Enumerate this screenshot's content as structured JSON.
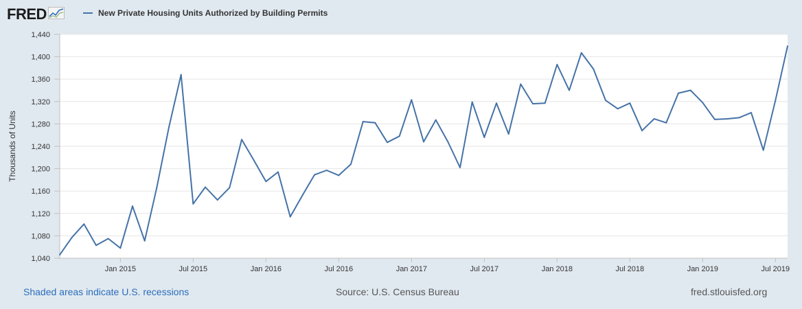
{
  "brand": {
    "logo_text": "FRED",
    "logo_icon": "chart-trend-icon"
  },
  "legend": {
    "label": "New Private Housing Units Authorized by Building Permits",
    "color": "#4572a7"
  },
  "footer": {
    "left": "Shaded areas indicate U.S. recessions",
    "center": "Source: U.S. Census Bureau",
    "right": "fred.stlouisfed.org"
  },
  "colors": {
    "background": "#e1e9f0",
    "plot_background": "#ffffff",
    "line": "#4572a7",
    "grid": "#e6e6e6"
  },
  "chart_data": {
    "type": "line",
    "title": "",
    "xlabel": "",
    "ylabel": "Thousands of Units",
    "ylim": [
      1040,
      1440
    ],
    "yticks": [
      1040,
      1080,
      1120,
      1160,
      1200,
      1240,
      1280,
      1320,
      1360,
      1400,
      1440
    ],
    "ytick_labels": [
      "1,040",
      "1,080",
      "1,120",
      "1,160",
      "1,200",
      "1,240",
      "1,280",
      "1,320",
      "1,360",
      "1,400",
      "1,440"
    ],
    "xticks": [
      {
        "date": "2015-01",
        "label": "Jan 2015"
      },
      {
        "date": "2015-07",
        "label": "Jul 2015"
      },
      {
        "date": "2016-01",
        "label": "Jan 2016"
      },
      {
        "date": "2016-07",
        "label": "Jul 2016"
      },
      {
        "date": "2017-01",
        "label": "Jan 2017"
      },
      {
        "date": "2017-07",
        "label": "Jul 2017"
      },
      {
        "date": "2018-01",
        "label": "Jan 2018"
      },
      {
        "date": "2018-07",
        "label": "Jul 2018"
      },
      {
        "date": "2019-01",
        "label": "Jan 2019"
      },
      {
        "date": "2019-07",
        "label": "Jul 2019"
      }
    ],
    "grid": true,
    "legend_position": "top-left",
    "series": [
      {
        "name": "New Private Housing Units Authorized by Building Permits",
        "x": [
          "2014-08",
          "2014-09",
          "2014-10",
          "2014-11",
          "2014-12",
          "2015-01",
          "2015-02",
          "2015-03",
          "2015-04",
          "2015-05",
          "2015-06",
          "2015-07",
          "2015-08",
          "2015-09",
          "2015-10",
          "2015-11",
          "2015-12",
          "2016-01",
          "2016-02",
          "2016-03",
          "2016-04",
          "2016-05",
          "2016-06",
          "2016-07",
          "2016-08",
          "2016-09",
          "2016-10",
          "2016-11",
          "2016-12",
          "2017-01",
          "2017-02",
          "2017-03",
          "2017-04",
          "2017-05",
          "2017-06",
          "2017-07",
          "2017-08",
          "2017-09",
          "2017-10",
          "2017-11",
          "2017-12",
          "2018-01",
          "2018-02",
          "2018-03",
          "2018-04",
          "2018-05",
          "2018-06",
          "2018-07",
          "2018-08",
          "2018-09",
          "2018-10",
          "2018-11",
          "2018-12",
          "2019-01",
          "2019-02",
          "2019-03",
          "2019-04",
          "2019-05",
          "2019-06",
          "2019-07",
          "2019-08"
        ],
        "values": [
          1046,
          1077,
          1101,
          1063,
          1075,
          1058,
          1133,
          1071,
          1166,
          1274,
          1368,
          1137,
          1167,
          1144,
          1166,
          1252,
          1215,
          1177,
          1194,
          1114,
          1152,
          1189,
          1197,
          1188,
          1208,
          1284,
          1282,
          1247,
          1258,
          1323,
          1248,
          1287,
          1248,
          1202,
          1319,
          1256,
          1317,
          1262,
          1351,
          1316,
          1317,
          1386,
          1340,
          1407,
          1378,
          1322,
          1307,
          1317,
          1268,
          1289,
          1282,
          1335,
          1340,
          1318,
          1288,
          1289,
          1291,
          1300,
          1233,
          1322,
          1419
        ]
      }
    ]
  }
}
